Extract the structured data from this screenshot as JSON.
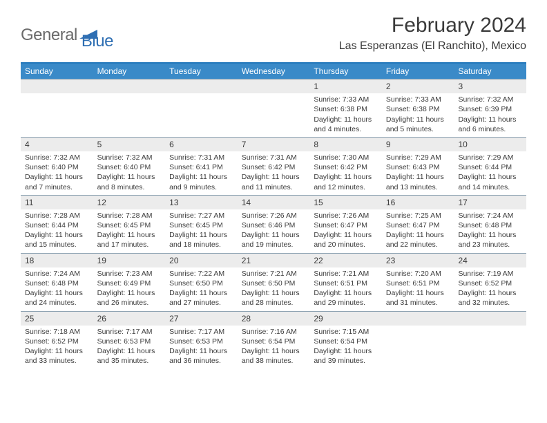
{
  "logo": {
    "general": "General",
    "blue": "Blue"
  },
  "title": "February 2024",
  "location": "Las Esperanzas (El Ranchito), Mexico",
  "header_bg": "#3a8ac8",
  "header_border": "#2277bb",
  "row_border": "#8aa0b0",
  "daynum_bg": "#ececec",
  "weekdays": [
    "Sunday",
    "Monday",
    "Tuesday",
    "Wednesday",
    "Thursday",
    "Friday",
    "Saturday"
  ],
  "weeks": [
    [
      {
        "n": "",
        "sr": "",
        "ss": "",
        "d1": "",
        "d2": ""
      },
      {
        "n": "",
        "sr": "",
        "ss": "",
        "d1": "",
        "d2": ""
      },
      {
        "n": "",
        "sr": "",
        "ss": "",
        "d1": "",
        "d2": ""
      },
      {
        "n": "",
        "sr": "",
        "ss": "",
        "d1": "",
        "d2": ""
      },
      {
        "n": "1",
        "sr": "Sunrise: 7:33 AM",
        "ss": "Sunset: 6:38 PM",
        "d1": "Daylight: 11 hours",
        "d2": "and 4 minutes."
      },
      {
        "n": "2",
        "sr": "Sunrise: 7:33 AM",
        "ss": "Sunset: 6:38 PM",
        "d1": "Daylight: 11 hours",
        "d2": "and 5 minutes."
      },
      {
        "n": "3",
        "sr": "Sunrise: 7:32 AM",
        "ss": "Sunset: 6:39 PM",
        "d1": "Daylight: 11 hours",
        "d2": "and 6 minutes."
      }
    ],
    [
      {
        "n": "4",
        "sr": "Sunrise: 7:32 AM",
        "ss": "Sunset: 6:40 PM",
        "d1": "Daylight: 11 hours",
        "d2": "and 7 minutes."
      },
      {
        "n": "5",
        "sr": "Sunrise: 7:32 AM",
        "ss": "Sunset: 6:40 PM",
        "d1": "Daylight: 11 hours",
        "d2": "and 8 minutes."
      },
      {
        "n": "6",
        "sr": "Sunrise: 7:31 AM",
        "ss": "Sunset: 6:41 PM",
        "d1": "Daylight: 11 hours",
        "d2": "and 9 minutes."
      },
      {
        "n": "7",
        "sr": "Sunrise: 7:31 AM",
        "ss": "Sunset: 6:42 PM",
        "d1": "Daylight: 11 hours",
        "d2": "and 11 minutes."
      },
      {
        "n": "8",
        "sr": "Sunrise: 7:30 AM",
        "ss": "Sunset: 6:42 PM",
        "d1": "Daylight: 11 hours",
        "d2": "and 12 minutes."
      },
      {
        "n": "9",
        "sr": "Sunrise: 7:29 AM",
        "ss": "Sunset: 6:43 PM",
        "d1": "Daylight: 11 hours",
        "d2": "and 13 minutes."
      },
      {
        "n": "10",
        "sr": "Sunrise: 7:29 AM",
        "ss": "Sunset: 6:44 PM",
        "d1": "Daylight: 11 hours",
        "d2": "and 14 minutes."
      }
    ],
    [
      {
        "n": "11",
        "sr": "Sunrise: 7:28 AM",
        "ss": "Sunset: 6:44 PM",
        "d1": "Daylight: 11 hours",
        "d2": "and 15 minutes."
      },
      {
        "n": "12",
        "sr": "Sunrise: 7:28 AM",
        "ss": "Sunset: 6:45 PM",
        "d1": "Daylight: 11 hours",
        "d2": "and 17 minutes."
      },
      {
        "n": "13",
        "sr": "Sunrise: 7:27 AM",
        "ss": "Sunset: 6:45 PM",
        "d1": "Daylight: 11 hours",
        "d2": "and 18 minutes."
      },
      {
        "n": "14",
        "sr": "Sunrise: 7:26 AM",
        "ss": "Sunset: 6:46 PM",
        "d1": "Daylight: 11 hours",
        "d2": "and 19 minutes."
      },
      {
        "n": "15",
        "sr": "Sunrise: 7:26 AM",
        "ss": "Sunset: 6:47 PM",
        "d1": "Daylight: 11 hours",
        "d2": "and 20 minutes."
      },
      {
        "n": "16",
        "sr": "Sunrise: 7:25 AM",
        "ss": "Sunset: 6:47 PM",
        "d1": "Daylight: 11 hours",
        "d2": "and 22 minutes."
      },
      {
        "n": "17",
        "sr": "Sunrise: 7:24 AM",
        "ss": "Sunset: 6:48 PM",
        "d1": "Daylight: 11 hours",
        "d2": "and 23 minutes."
      }
    ],
    [
      {
        "n": "18",
        "sr": "Sunrise: 7:24 AM",
        "ss": "Sunset: 6:48 PM",
        "d1": "Daylight: 11 hours",
        "d2": "and 24 minutes."
      },
      {
        "n": "19",
        "sr": "Sunrise: 7:23 AM",
        "ss": "Sunset: 6:49 PM",
        "d1": "Daylight: 11 hours",
        "d2": "and 26 minutes."
      },
      {
        "n": "20",
        "sr": "Sunrise: 7:22 AM",
        "ss": "Sunset: 6:50 PM",
        "d1": "Daylight: 11 hours",
        "d2": "and 27 minutes."
      },
      {
        "n": "21",
        "sr": "Sunrise: 7:21 AM",
        "ss": "Sunset: 6:50 PM",
        "d1": "Daylight: 11 hours",
        "d2": "and 28 minutes."
      },
      {
        "n": "22",
        "sr": "Sunrise: 7:21 AM",
        "ss": "Sunset: 6:51 PM",
        "d1": "Daylight: 11 hours",
        "d2": "and 29 minutes."
      },
      {
        "n": "23",
        "sr": "Sunrise: 7:20 AM",
        "ss": "Sunset: 6:51 PM",
        "d1": "Daylight: 11 hours",
        "d2": "and 31 minutes."
      },
      {
        "n": "24",
        "sr": "Sunrise: 7:19 AM",
        "ss": "Sunset: 6:52 PM",
        "d1": "Daylight: 11 hours",
        "d2": "and 32 minutes."
      }
    ],
    [
      {
        "n": "25",
        "sr": "Sunrise: 7:18 AM",
        "ss": "Sunset: 6:52 PM",
        "d1": "Daylight: 11 hours",
        "d2": "and 33 minutes."
      },
      {
        "n": "26",
        "sr": "Sunrise: 7:17 AM",
        "ss": "Sunset: 6:53 PM",
        "d1": "Daylight: 11 hours",
        "d2": "and 35 minutes."
      },
      {
        "n": "27",
        "sr": "Sunrise: 7:17 AM",
        "ss": "Sunset: 6:53 PM",
        "d1": "Daylight: 11 hours",
        "d2": "and 36 minutes."
      },
      {
        "n": "28",
        "sr": "Sunrise: 7:16 AM",
        "ss": "Sunset: 6:54 PM",
        "d1": "Daylight: 11 hours",
        "d2": "and 38 minutes."
      },
      {
        "n": "29",
        "sr": "Sunrise: 7:15 AM",
        "ss": "Sunset: 6:54 PM",
        "d1": "Daylight: 11 hours",
        "d2": "and 39 minutes."
      },
      {
        "n": "",
        "sr": "",
        "ss": "",
        "d1": "",
        "d2": ""
      },
      {
        "n": "",
        "sr": "",
        "ss": "",
        "d1": "",
        "d2": ""
      }
    ]
  ]
}
